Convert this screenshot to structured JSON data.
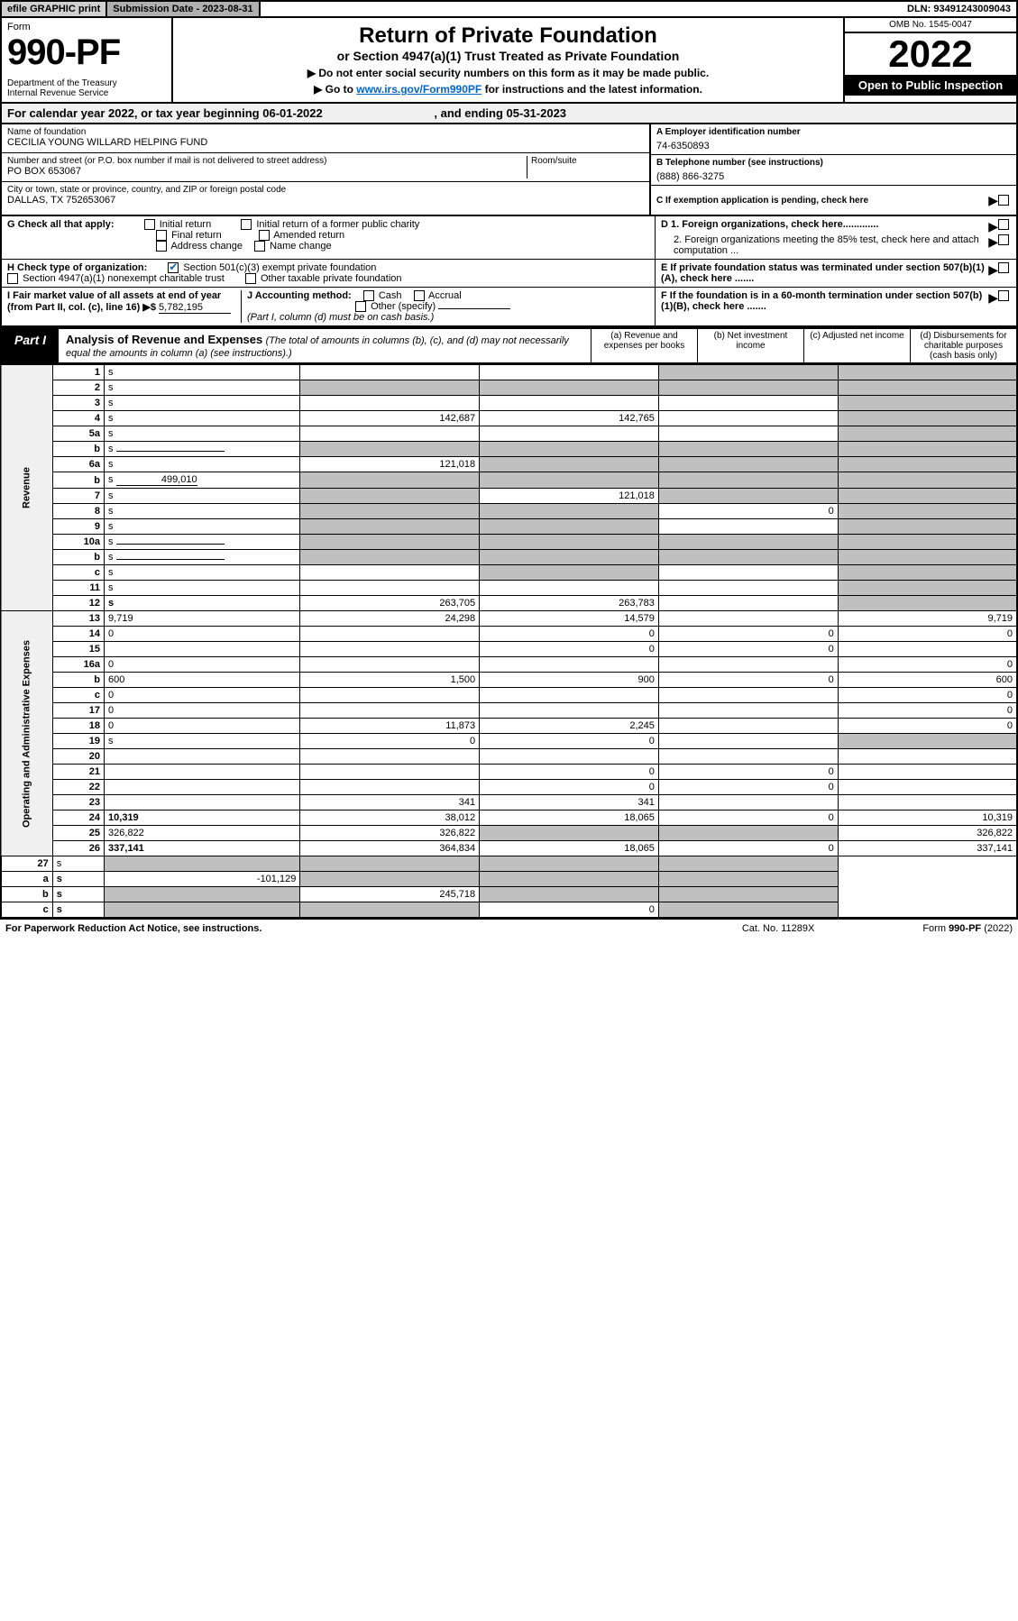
{
  "top": {
    "efile": "efile GRAPHIC print",
    "sub_label": "Submission Date - 2023-08-31",
    "dln": "DLN: 93491243009043"
  },
  "header": {
    "form_word": "Form",
    "form_no": "990-PF",
    "dept": "Department of the Treasury\nInternal Revenue Service",
    "title": "Return of Private Foundation",
    "subtitle": "or Section 4947(a)(1) Trust Treated as Private Foundation",
    "note1": "▶ Do not enter social security numbers on this form as it may be made public.",
    "note2_pre": "▶ Go to ",
    "note2_link": "www.irs.gov/Form990PF",
    "note2_post": " for instructions and the latest information.",
    "omb": "OMB No. 1545-0047",
    "year": "2022",
    "inspect": "Open to Public Inspection"
  },
  "cal_year": {
    "pre": "For calendar year 2022, or tax year beginning ",
    "begin": "06-01-2022",
    "mid": " , and ending ",
    "end": "05-31-2023"
  },
  "ident": {
    "name_label": "Name of foundation",
    "name": "CECILIA YOUNG WILLARD HELPING FUND",
    "addr_label": "Number and street (or P.O. box number if mail is not delivered to street address)",
    "addr": "PO BOX 653067",
    "room_label": "Room/suite",
    "city_label": "City or town, state or province, country, and ZIP or foreign postal code",
    "city": "DALLAS, TX  752653067",
    "ein_label": "A Employer identification number",
    "ein": "74-6350893",
    "tel_label": "B Telephone number (see instructions)",
    "tel": "(888) 866-3275",
    "c_label": "C If exemption application is pending, check here",
    "d1": "D 1. Foreign organizations, check here.............",
    "d2": "2. Foreign organizations meeting the 85% test, check here and attach computation ...",
    "e": "E If private foundation status was terminated under section 507(b)(1)(A), check here .......",
    "f": "F If the foundation is in a 60-month termination under section 507(b)(1)(B), check here ......."
  },
  "g": {
    "label": "G Check all that apply:",
    "initial": "Initial return",
    "initial_former": "Initial return of a former public charity",
    "final": "Final return",
    "amended": "Amended return",
    "addr_change": "Address change",
    "name_change": "Name change"
  },
  "h": {
    "label": "H Check type of organization:",
    "s501": "Section 501(c)(3) exempt private foundation",
    "s4947": "Section 4947(a)(1) nonexempt charitable trust",
    "other_taxable": "Other taxable private foundation"
  },
  "i": {
    "label": "I Fair market value of all assets at end of year (from Part II, col. (c), line 16) ▶$",
    "value": "5,782,195"
  },
  "j": {
    "label": "J Accounting method:",
    "cash": "Cash",
    "accrual": "Accrual",
    "other": "Other (specify)",
    "note": "(Part I, column (d) must be on cash basis.)"
  },
  "part1": {
    "label": "Part I",
    "title": "Analysis of Revenue and Expenses",
    "note": "(The total of amounts in columns (b), (c), and (d) may not necessarily equal the amounts in column (a) (see instructions).)",
    "col_a": "(a) Revenue and expenses per books",
    "col_b": "(b) Net investment income",
    "col_c": "(c) Adjusted net income",
    "col_d": "(d) Disbursements for charitable purposes (cash basis only)"
  },
  "side_rev": "Revenue",
  "side_exp": "Operating and Administrative Expenses",
  "rows": [
    {
      "n": "1",
      "d": "s",
      "a": "",
      "b": "",
      "c": "s"
    },
    {
      "n": "2",
      "d": "s",
      "a": "s",
      "b": "s",
      "c": "s",
      "chk": true
    },
    {
      "n": "3",
      "d": "s",
      "a": "",
      "b": "",
      "c": ""
    },
    {
      "n": "4",
      "d": "s",
      "a": "142,687",
      "b": "142,765",
      "c": ""
    },
    {
      "n": "5a",
      "d": "s",
      "a": "",
      "b": "",
      "c": ""
    },
    {
      "n": "b",
      "d": "s",
      "a": "s",
      "b": "s",
      "c": "s",
      "sub": true
    },
    {
      "n": "6a",
      "d": "s",
      "a": "121,018",
      "b": "s",
      "c": "s"
    },
    {
      "n": "b",
      "d": "s",
      "a": "s",
      "b": "s",
      "c": "s",
      "sub": true,
      "subval": "499,010"
    },
    {
      "n": "7",
      "d": "s",
      "a": "s",
      "b": "121,018",
      "c": "s"
    },
    {
      "n": "8",
      "d": "s",
      "a": "s",
      "b": "s",
      "c": "0"
    },
    {
      "n": "9",
      "d": "s",
      "a": "s",
      "b": "s",
      "c": ""
    },
    {
      "n": "10a",
      "d": "s",
      "a": "s",
      "b": "s",
      "c": "s",
      "sub": true
    },
    {
      "n": "b",
      "d": "s",
      "a": "s",
      "b": "s",
      "c": "s",
      "sub": true
    },
    {
      "n": "c",
      "d": "s",
      "a": "",
      "b": "s",
      "c": ""
    },
    {
      "n": "11",
      "d": "s",
      "a": "",
      "b": "",
      "c": ""
    },
    {
      "n": "12",
      "d": "s",
      "a": "263,705",
      "b": "263,783",
      "c": "",
      "bold": true
    }
  ],
  "exp_rows": [
    {
      "n": "13",
      "d": "9,719",
      "a": "24,298",
      "b": "14,579",
      "c": ""
    },
    {
      "n": "14",
      "d": "0",
      "a": "",
      "b": "0",
      "c": "0"
    },
    {
      "n": "15",
      "d": "",
      "a": "",
      "b": "0",
      "c": "0"
    },
    {
      "n": "16a",
      "d": "0",
      "a": "",
      "b": "",
      "c": ""
    },
    {
      "n": "b",
      "d": "600",
      "a": "1,500",
      "b": "900",
      "c": "0"
    },
    {
      "n": "c",
      "d": "0",
      "a": "",
      "b": "",
      "c": ""
    },
    {
      "n": "17",
      "d": "0",
      "a": "",
      "b": "",
      "c": ""
    },
    {
      "n": "18",
      "d": "0",
      "a": "11,873",
      "b": "2,245",
      "c": ""
    },
    {
      "n": "19",
      "d": "s",
      "a": "0",
      "b": "0",
      "c": ""
    },
    {
      "n": "20",
      "d": "",
      "a": "",
      "b": "",
      "c": ""
    },
    {
      "n": "21",
      "d": "",
      "a": "",
      "b": "0",
      "c": "0"
    },
    {
      "n": "22",
      "d": "",
      "a": "",
      "b": "0",
      "c": "0"
    },
    {
      "n": "23",
      "d": "",
      "a": "341",
      "b": "341",
      "c": ""
    },
    {
      "n": "24",
      "d": "10,319",
      "a": "38,012",
      "b": "18,065",
      "c": "0",
      "bold": true
    },
    {
      "n": "25",
      "d": "326,822",
      "a": "326,822",
      "b": "s",
      "c": "s"
    },
    {
      "n": "26",
      "d": "337,141",
      "a": "364,834",
      "b": "18,065",
      "c": "0",
      "bold": true
    }
  ],
  "sub_rows": [
    {
      "n": "27",
      "d": "s",
      "a": "s",
      "b": "s",
      "c": "s"
    },
    {
      "n": "a",
      "d": "s",
      "a": "-101,129",
      "b": "s",
      "c": "s",
      "bold": true
    },
    {
      "n": "b",
      "d": "s",
      "a": "s",
      "b": "245,718",
      "c": "s",
      "bold": true
    },
    {
      "n": "c",
      "d": "s",
      "a": "s",
      "b": "s",
      "c": "0",
      "bold": true
    }
  ],
  "footer": {
    "left": "For Paperwork Reduction Act Notice, see instructions.",
    "mid": "Cat. No. 11289X",
    "right": "Form 990-PF (2022)"
  }
}
